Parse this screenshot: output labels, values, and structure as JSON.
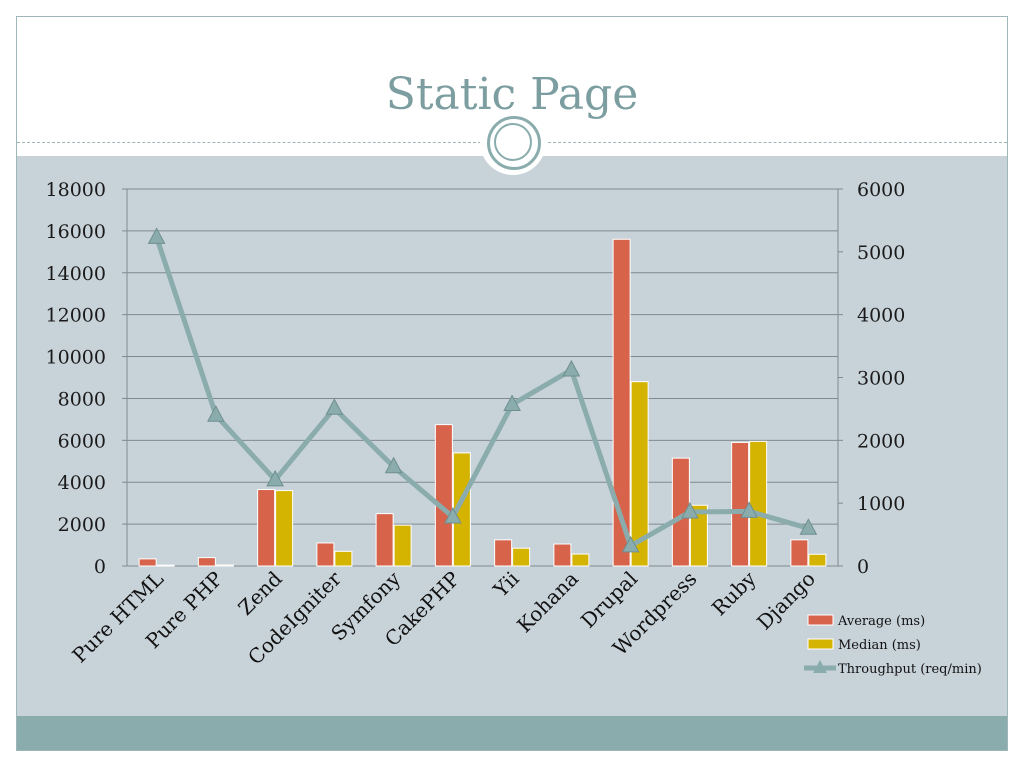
{
  "slide": {
    "title": "Static Page"
  },
  "colors": {
    "average": "#d6634a",
    "median": "#d4b400",
    "throughput": "#8aacad",
    "panel": "#c8d2d9",
    "title": "#7d9ea0"
  },
  "chart_data": {
    "type": "bar",
    "title": "",
    "categories": [
      "Pure HTML",
      "Pure PHP",
      "Zend",
      "CodeIgniter",
      "Symfony",
      "CakePHP",
      "Yii",
      "Kohana",
      "Drupal",
      "Wordpress",
      "Ruby",
      "Django"
    ],
    "series": [
      {
        "name": "Average (ms)",
        "type": "bar",
        "axis": "left",
        "values": [
          340,
          400,
          3650,
          1100,
          2500,
          6750,
          1250,
          1050,
          15600,
          5150,
          5900,
          1250
        ]
      },
      {
        "name": "Median (ms)",
        "type": "bar",
        "axis": "left",
        "values": [
          40,
          50,
          3600,
          700,
          1950,
          5400,
          850,
          570,
          8800,
          2900,
          5950,
          560
        ]
      },
      {
        "name": "Throughput (req/min)",
        "type": "line",
        "axis": "right",
        "values": [
          5230,
          2400,
          1370,
          2510,
          1580,
          780,
          2570,
          3120,
          320,
          860,
          870,
          600
        ]
      }
    ],
    "y_left": {
      "min": 0,
      "max": 18000,
      "ticks": [
        "0",
        "2000",
        "4000",
        "6000",
        "8000",
        "10000",
        "12000",
        "14000",
        "16000",
        "18000"
      ]
    },
    "y_right": {
      "min": 0,
      "max": 6000,
      "ticks": [
        "0",
        "1000",
        "2000",
        "3000",
        "4000",
        "5000",
        "6000"
      ]
    },
    "grid": true,
    "legend_position": "bottom-right"
  }
}
